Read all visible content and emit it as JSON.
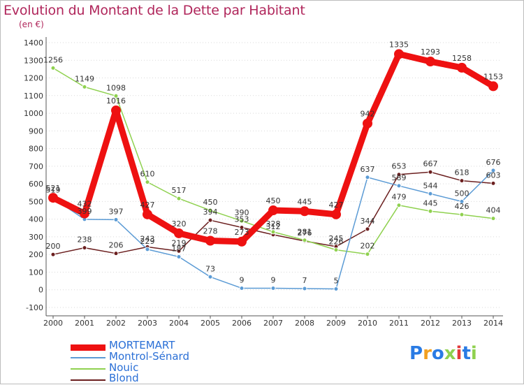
{
  "chart_data": {
    "type": "line",
    "title": "Evolution du Montant de la Dette par Habitant",
    "ylabel": "(en €)",
    "xlabel": "",
    "x": [
      "2000",
      "2001",
      "2002",
      "2003",
      "2004",
      "2005",
      "2006",
      "2007",
      "2008",
      "2009",
      "2010",
      "2011",
      "2012",
      "2013",
      "2014"
    ],
    "ylim": [
      -100,
      1400
    ],
    "yticks": [
      -100,
      0,
      100,
      200,
      300,
      400,
      500,
      600,
      700,
      800,
      900,
      1000,
      1100,
      1200,
      1300,
      1400
    ],
    "grid": "horizontal dotted",
    "legend_position": "bottom-left",
    "series": [
      {
        "name": "MORTEMART",
        "color": "#ee1111",
        "values": [
          521,
          432,
          1016,
          427,
          320,
          278,
          273,
          450,
          445,
          427,
          942,
          1335,
          1293,
          1258,
          1153
        ]
      },
      {
        "name": "Montrol-Sénard",
        "color": "#5b9bd5",
        "values": [
          519,
          399,
          397,
          229,
          187,
          73,
          9,
          9,
          7,
          5,
          637,
          589,
          544,
          500,
          676
        ]
      },
      {
        "name": "Nouic",
        "color": "#8fd14f",
        "values": [
          1256,
          1149,
          1098,
          610,
          517,
          450,
          390,
          328,
          281,
          226,
          202,
          479,
          445,
          426,
          404
        ]
      },
      {
        "name": "Blond",
        "color": "#6b1f1f",
        "values": [
          200,
          238,
          206,
          243,
          219,
          394,
          353,
          312,
          276,
          245,
          344,
          653,
          667,
          618,
          603
        ]
      }
    ]
  },
  "logo": {
    "letters": [
      "P",
      "r",
      "o",
      "x",
      "i",
      "t",
      "i"
    ],
    "colors": [
      "#2a7be4",
      "#f2a020",
      "#2a7be4",
      "#8fd14f",
      "#e23a3a",
      "#2a7be4",
      "#8fd14f"
    ]
  }
}
